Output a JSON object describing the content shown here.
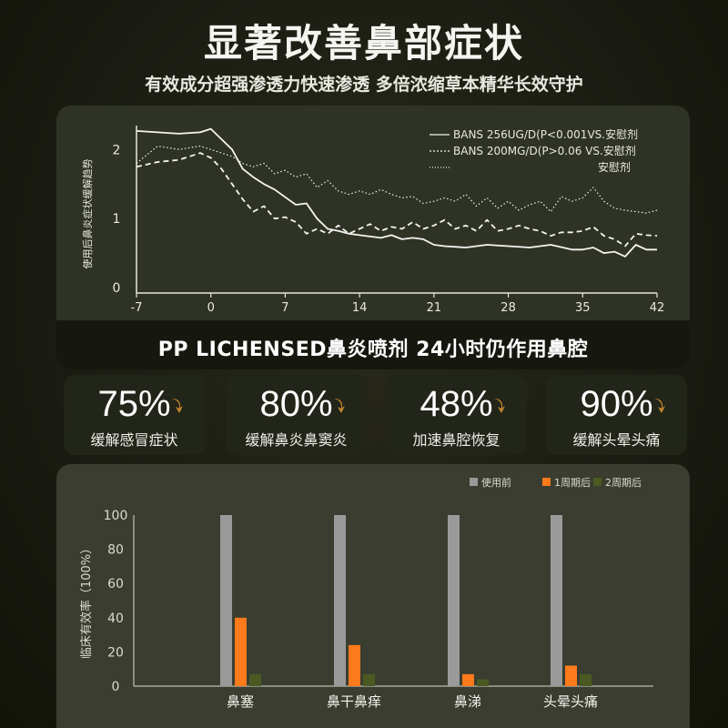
{
  "header": {
    "title": "显著改善鼻部症状",
    "subtitle": "有效成分超强渗透力快速渗透 多倍浓缩草本精华长效守护"
  },
  "banner": "PP LICHENSED鼻炎喷剂 24小时仍作用鼻腔",
  "stats": [
    {
      "value": "75%",
      "label": "缓解感冒症状"
    },
    {
      "value": "80%",
      "label": "缓解鼻炎鼻窦炎"
    },
    {
      "value": "48%",
      "label": "加速鼻腔恢复"
    },
    {
      "value": "90%",
      "label": "缓解头晕头痛"
    }
  ],
  "colors": {
    "accent_arrow": "#c9872e",
    "bar_before": "#9a9a9a",
    "bar_week1": "#ff7a1a",
    "bar_week2": "#4a5a22"
  },
  "chart_data": [
    {
      "type": "line",
      "ylabel": "使用后鼻炎症状缓解趋势",
      "xlabel": "",
      "x_ticks": [
        "-7",
        "0",
        "7",
        "14",
        "21",
        "28",
        "35",
        "42"
      ],
      "y_ticks": [
        "0",
        "1",
        "2"
      ],
      "xlim": [
        -7,
        42
      ],
      "ylim": [
        0,
        2.4
      ],
      "grid": false,
      "legend_position": "top-right",
      "series": [
        {
          "name": "BANS 256UG/D(P<0.001VS.安慰剂",
          "style": "solid",
          "x": [
            -7,
            -5,
            -3,
            -1,
            0,
            2,
            3,
            4,
            5,
            6,
            8,
            9,
            10,
            11,
            12,
            13,
            14,
            15,
            16,
            17,
            18,
            19,
            20,
            21,
            22,
            24,
            26,
            28,
            30,
            32,
            34,
            35,
            36,
            37,
            38,
            39,
            40,
            41,
            42
          ],
          "y": [
            2.27,
            2.25,
            2.23,
            2.25,
            2.3,
            2.0,
            1.72,
            1.6,
            1.5,
            1.42,
            1.2,
            1.22,
            1.0,
            0.85,
            0.82,
            0.78,
            0.76,
            0.74,
            0.72,
            0.76,
            0.7,
            0.72,
            0.7,
            0.62,
            0.6,
            0.58,
            0.62,
            0.6,
            0.58,
            0.62,
            0.55,
            0.55,
            0.58,
            0.5,
            0.52,
            0.45,
            0.62,
            0.55,
            0.55
          ]
        },
        {
          "name": "BANS 200MG/D(P>0.06 VS.安慰剂",
          "style": "dashed",
          "x": [
            -7,
            -5,
            -3,
            -1,
            0,
            1,
            2,
            3,
            4,
            5,
            6,
            7,
            8,
            9,
            10,
            11,
            12,
            13,
            14,
            15,
            16,
            17,
            18,
            19,
            20,
            21,
            22,
            23,
            24,
            25,
            26,
            27,
            28,
            29,
            30,
            31,
            32,
            33,
            34,
            35,
            36,
            37,
            38,
            39,
            40,
            41,
            42
          ],
          "y": [
            1.75,
            1.82,
            1.85,
            1.95,
            1.88,
            1.72,
            1.5,
            1.28,
            1.1,
            1.18,
            1.0,
            1.02,
            0.95,
            0.78,
            0.85,
            0.78,
            0.9,
            0.78,
            0.85,
            0.92,
            0.82,
            0.88,
            0.85,
            0.95,
            0.85,
            0.9,
            0.98,
            0.85,
            0.9,
            0.82,
            0.98,
            0.82,
            0.85,
            0.9,
            0.85,
            0.82,
            0.75,
            0.8,
            0.8,
            0.82,
            0.88,
            0.75,
            0.7,
            0.6,
            0.78,
            0.76,
            0.75
          ]
        },
        {
          "name": "安慰剂",
          "style": "dotted",
          "x": [
            -7,
            -5,
            -3,
            -1,
            0,
            1,
            2,
            3,
            4,
            5,
            6,
            7,
            8,
            9,
            10,
            11,
            12,
            13,
            14,
            15,
            16,
            17,
            18,
            19,
            20,
            21,
            22,
            23,
            24,
            25,
            26,
            27,
            28,
            29,
            30,
            31,
            32,
            33,
            34,
            35,
            36,
            37,
            38,
            39,
            40,
            41,
            42
          ],
          "y": [
            1.8,
            2.05,
            2.0,
            2.05,
            2.0,
            1.95,
            1.9,
            1.8,
            1.75,
            1.8,
            1.65,
            1.7,
            1.6,
            1.65,
            1.45,
            1.55,
            1.4,
            1.35,
            1.4,
            1.35,
            1.42,
            1.35,
            1.3,
            1.32,
            1.22,
            1.25,
            1.3,
            1.25,
            1.35,
            1.18,
            1.3,
            1.15,
            1.25,
            1.12,
            1.2,
            1.25,
            1.1,
            1.32,
            1.25,
            1.3,
            1.45,
            1.25,
            1.15,
            1.12,
            1.1,
            1.08,
            1.12
          ]
        }
      ]
    },
    {
      "type": "bar",
      "ylabel": "临床有效率（100%）",
      "xlabel": "",
      "categories": [
        "鼻塞",
        "鼻干鼻痒",
        "鼻涕",
        "头晕头痛"
      ],
      "y_ticks": [
        "0",
        "20",
        "40",
        "60",
        "80",
        "100"
      ],
      "ylim": [
        0,
        100
      ],
      "grid": false,
      "legend_position": "top-right",
      "series": [
        {
          "name": "使用前",
          "values": [
            100,
            100,
            100,
            100
          ]
        },
        {
          "name": "1周期后",
          "values": [
            40,
            24,
            7,
            12
          ]
        },
        {
          "name": "2周期后",
          "values": [
            7,
            7,
            4,
            7
          ]
        }
      ]
    }
  ]
}
